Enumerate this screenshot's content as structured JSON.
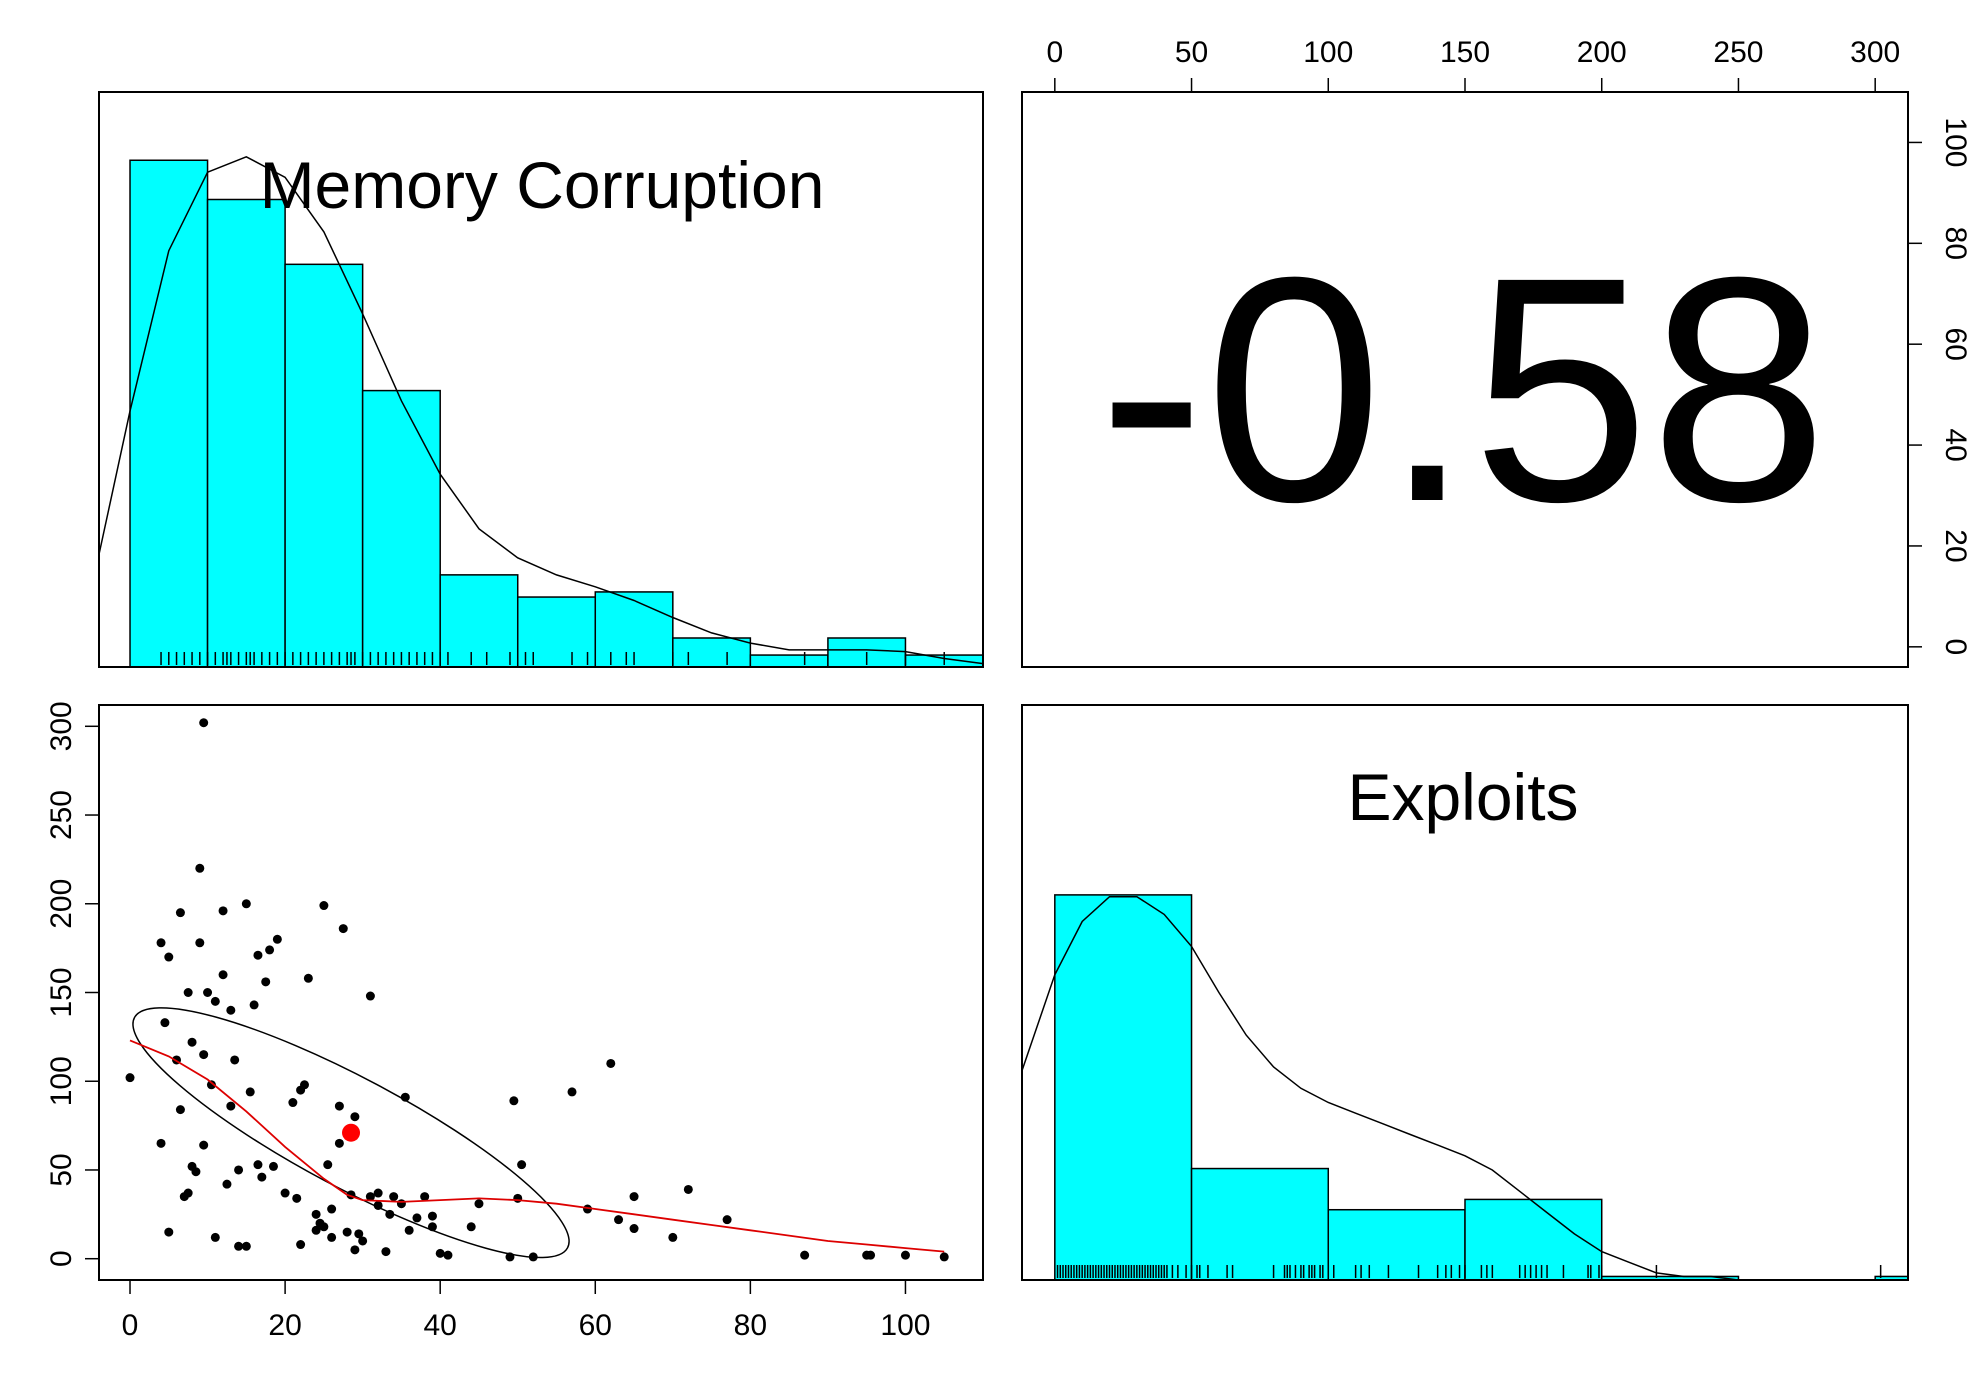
{
  "chart_data": [
    {
      "type": "histogram",
      "panel": "top-left",
      "title": "Memory Corruption",
      "bin_edges": [
        0,
        10,
        20,
        30,
        40,
        50,
        60,
        70,
        80,
        90,
        100,
        110
      ],
      "densities": [
        0.0297,
        0.0274,
        0.0236,
        0.0162,
        0.0054,
        0.0041,
        0.0044,
        0.0017,
        0.0007,
        0.0017,
        0.0007
      ],
      "xlim": [
        -4,
        110
      ],
      "ylim": [
        0,
        0.0337
      ],
      "density_curve": {
        "x": [
          -4,
          0,
          5,
          10,
          15,
          20,
          25,
          30,
          35,
          40,
          45,
          50,
          55,
          60,
          65,
          70,
          75,
          80,
          85,
          90,
          95,
          100,
          105,
          110
        ],
        "y": [
          0.0066,
          0.015,
          0.0244,
          0.029,
          0.0299,
          0.0287,
          0.0255,
          0.0207,
          0.0156,
          0.0113,
          0.0081,
          0.0064,
          0.0054,
          0.0047,
          0.0039,
          0.0029,
          0.002,
          0.0014,
          0.001,
          0.001,
          0.001,
          0.0009,
          0.0005,
          0.0002
        ]
      },
      "rug": [
        4,
        5,
        6,
        7,
        8,
        9,
        10,
        11,
        12,
        12.5,
        13,
        14,
        15,
        15.5,
        16,
        17,
        18,
        19,
        20,
        21,
        22,
        23,
        24,
        25,
        26,
        27,
        28,
        28.5,
        29,
        30,
        31,
        32,
        33,
        34,
        35,
        36,
        37,
        38,
        39,
        40,
        41,
        44,
        46,
        49,
        50,
        51,
        52,
        57,
        59,
        62,
        64,
        65,
        70,
        72,
        77,
        87,
        95,
        100,
        105
      ]
    },
    {
      "type": "scatter",
      "panel": "bottom-left",
      "xlim": [
        -4,
        110
      ],
      "ylim": [
        -12,
        312
      ],
      "x_ticks": [
        0,
        20,
        40,
        60,
        80,
        100
      ],
      "x_tick_labels": [
        "0",
        "20",
        "40",
        "60",
        "80",
        "100"
      ],
      "y_ticks": [
        0,
        50,
        100,
        150,
        200,
        250,
        300
      ],
      "y_tick_labels": [
        "0",
        "50",
        "100",
        "150",
        "200",
        "250",
        "300"
      ],
      "points": [
        [
          0,
          102
        ],
        [
          4,
          65
        ],
        [
          4,
          178
        ],
        [
          4.5,
          133
        ],
        [
          5,
          170
        ],
        [
          5,
          15
        ],
        [
          6,
          112
        ],
        [
          6.5,
          195
        ],
        [
          6.5,
          84
        ],
        [
          7,
          35
        ],
        [
          7.5,
          150
        ],
        [
          7.5,
          37
        ],
        [
          8,
          52
        ],
        [
          8,
          122
        ],
        [
          8.5,
          49
        ],
        [
          9,
          220
        ],
        [
          9,
          178
        ],
        [
          9.5,
          302
        ],
        [
          9.5,
          115
        ],
        [
          9.5,
          64
        ],
        [
          10,
          150
        ],
        [
          10.5,
          98
        ],
        [
          11,
          145
        ],
        [
          11,
          12
        ],
        [
          12,
          196
        ],
        [
          12,
          160
        ],
        [
          12.5,
          42
        ],
        [
          13,
          86
        ],
        [
          13,
          140
        ],
        [
          13.5,
          112
        ],
        [
          14,
          7
        ],
        [
          14,
          50
        ],
        [
          15,
          200
        ],
        [
          15,
          7
        ],
        [
          15.5,
          94
        ],
        [
          16,
          143
        ],
        [
          16.5,
          171
        ],
        [
          16.5,
          53
        ],
        [
          17,
          46
        ],
        [
          17.5,
          156
        ],
        [
          18,
          174
        ],
        [
          18.5,
          52
        ],
        [
          19,
          180
        ],
        [
          20,
          37
        ],
        [
          21,
          88
        ],
        [
          21.5,
          34
        ],
        [
          22,
          95
        ],
        [
          22,
          8
        ],
        [
          22.5,
          98
        ],
        [
          23,
          158
        ],
        [
          24,
          25
        ],
        [
          24,
          16
        ],
        [
          24.5,
          20
        ],
        [
          25,
          18
        ],
        [
          25,
          199
        ],
        [
          25.5,
          53
        ],
        [
          26,
          28
        ],
        [
          26,
          12
        ],
        [
          27,
          86
        ],
        [
          27,
          65
        ],
        [
          27.5,
          186
        ],
        [
          28,
          15
        ],
        [
          28.5,
          36
        ],
        [
          29,
          80
        ],
        [
          29,
          5
        ],
        [
          29.5,
          14
        ],
        [
          30,
          10
        ],
        [
          31,
          148
        ],
        [
          31,
          35
        ],
        [
          32,
          30
        ],
        [
          32,
          37
        ],
        [
          33,
          4
        ],
        [
          33.5,
          25
        ],
        [
          34,
          35
        ],
        [
          35,
          31
        ],
        [
          35.5,
          91
        ],
        [
          36,
          16
        ],
        [
          37,
          23
        ],
        [
          38,
          35
        ],
        [
          39,
          18
        ],
        [
          39,
          24
        ],
        [
          40,
          3
        ],
        [
          41,
          2
        ],
        [
          44,
          18
        ],
        [
          45,
          31
        ],
        [
          49,
          1
        ],
        [
          49.5,
          89
        ],
        [
          50,
          34
        ],
        [
          50.5,
          53
        ],
        [
          52,
          1
        ],
        [
          57,
          94
        ],
        [
          59,
          28
        ],
        [
          62,
          110
        ],
        [
          63,
          22
        ],
        [
          65,
          35
        ],
        [
          65,
          17
        ],
        [
          70,
          12
        ],
        [
          72,
          39
        ],
        [
          77,
          22
        ],
        [
          87,
          2
        ],
        [
          95,
          2
        ],
        [
          95.5,
          2
        ],
        [
          100,
          2
        ],
        [
          105,
          1
        ]
      ],
      "mean_point": [
        28.5,
        71
      ],
      "loess_curve": {
        "x": [
          0,
          5,
          10,
          15,
          20,
          25,
          28,
          30,
          35,
          40,
          45,
          50,
          55,
          60,
          65,
          70,
          75,
          80,
          85,
          90,
          95,
          100,
          105
        ],
        "y": [
          123,
          114,
          101,
          83,
          63,
          45,
          36,
          33,
          32,
          33,
          34,
          33,
          31,
          28,
          25,
          22,
          19,
          16,
          13,
          10,
          8,
          6,
          4
        ]
      },
      "ellipse": {
        "cx": 28.5,
        "cy": 71,
        "rx": 25.3,
        "ry": 49.7,
        "rotation_deg": 28
      }
    },
    {
      "type": "correlation",
      "panel": "top-right",
      "value": "-0.58",
      "x_ticks": [
        0,
        50,
        100,
        150,
        200,
        250,
        300
      ],
      "x_tick_labels": [
        "0",
        "50",
        "100",
        "150",
        "200",
        "250",
        "300"
      ],
      "xlim": [
        -12,
        312
      ],
      "y_ticks": [
        0,
        20,
        40,
        60,
        80,
        100
      ],
      "y_tick_labels": [
        "0",
        "20",
        "40",
        "60",
        "80",
        "100"
      ],
      "ylim": [
        -4,
        110
      ]
    },
    {
      "type": "histogram",
      "panel": "bottom-right",
      "title": "Exploits",
      "bin_edges": [
        0,
        50,
        100,
        150,
        200,
        250,
        300,
        312
      ],
      "densities": [
        0.01085,
        0.00314,
        0.00198,
        0.00227,
        0.0001,
        0.0,
        0.0001
      ],
      "xlim": [
        -12,
        312
      ],
      "ylim": [
        0,
        0.0162
      ],
      "density_curve": {
        "x": [
          -12,
          0,
          10,
          20,
          30,
          40,
          50,
          60,
          70,
          80,
          90,
          100,
          110,
          120,
          130,
          140,
          150,
          160,
          170,
          180,
          190,
          200,
          210,
          220,
          230,
          240,
          250,
          260,
          270,
          280,
          290,
          300,
          312
        ],
        "y": [
          0.0059,
          0.0086,
          0.0101,
          0.0108,
          0.0108,
          0.0103,
          0.0094,
          0.0081,
          0.0069,
          0.006,
          0.0054,
          0.005,
          0.0047,
          0.0044,
          0.0041,
          0.0038,
          0.0035,
          0.0031,
          0.0025,
          0.0019,
          0.0013,
          0.0008,
          0.0005,
          0.0002,
          0.0001,
          0.0001,
          0.0,
          0.0,
          0.0,
          0.0,
          0.0,
          0.0,
          0.0
        ]
      },
      "rug": [
        1,
        2,
        3,
        4,
        5,
        6,
        7,
        8,
        9,
        10,
        11,
        12,
        13,
        14,
        15,
        16,
        17,
        18,
        19,
        20,
        21,
        22,
        23,
        24,
        25,
        26,
        27,
        28,
        29,
        30,
        31,
        32,
        33,
        34,
        35,
        36,
        37,
        38,
        39,
        40,
        41,
        43,
        45,
        48,
        50,
        52,
        53,
        56,
        63,
        65,
        80,
        84,
        85,
        86,
        88,
        90,
        91,
        93,
        94,
        95,
        97,
        98,
        100,
        102,
        110,
        112,
        115,
        122,
        133,
        140,
        143,
        145,
        148,
        150,
        156,
        158,
        160,
        170,
        172,
        174,
        176,
        178,
        180,
        186,
        195,
        196,
        199,
        200,
        220,
        302
      ]
    }
  ],
  "colors": {
    "bar_fill": "#00ffff",
    "bar_stroke": "#000000",
    "curve": "#000000",
    "loess": "#dd0000",
    "mean_point": "#ff0000",
    "points": "#000000"
  }
}
